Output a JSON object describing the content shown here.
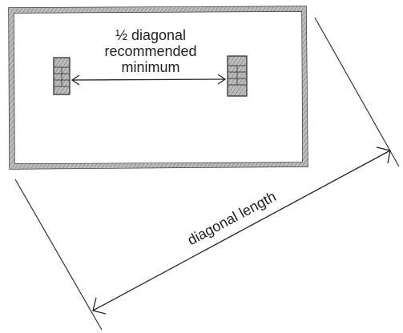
{
  "labels": {
    "min_line1": "½ diagonal",
    "min_line2": "recommended",
    "min_line3": "minimum",
    "diagonal": "diagonal length"
  },
  "colors": {
    "line": "#333333",
    "fill": "#b0b0b0",
    "pad_fill": "#c8c8c8"
  }
}
